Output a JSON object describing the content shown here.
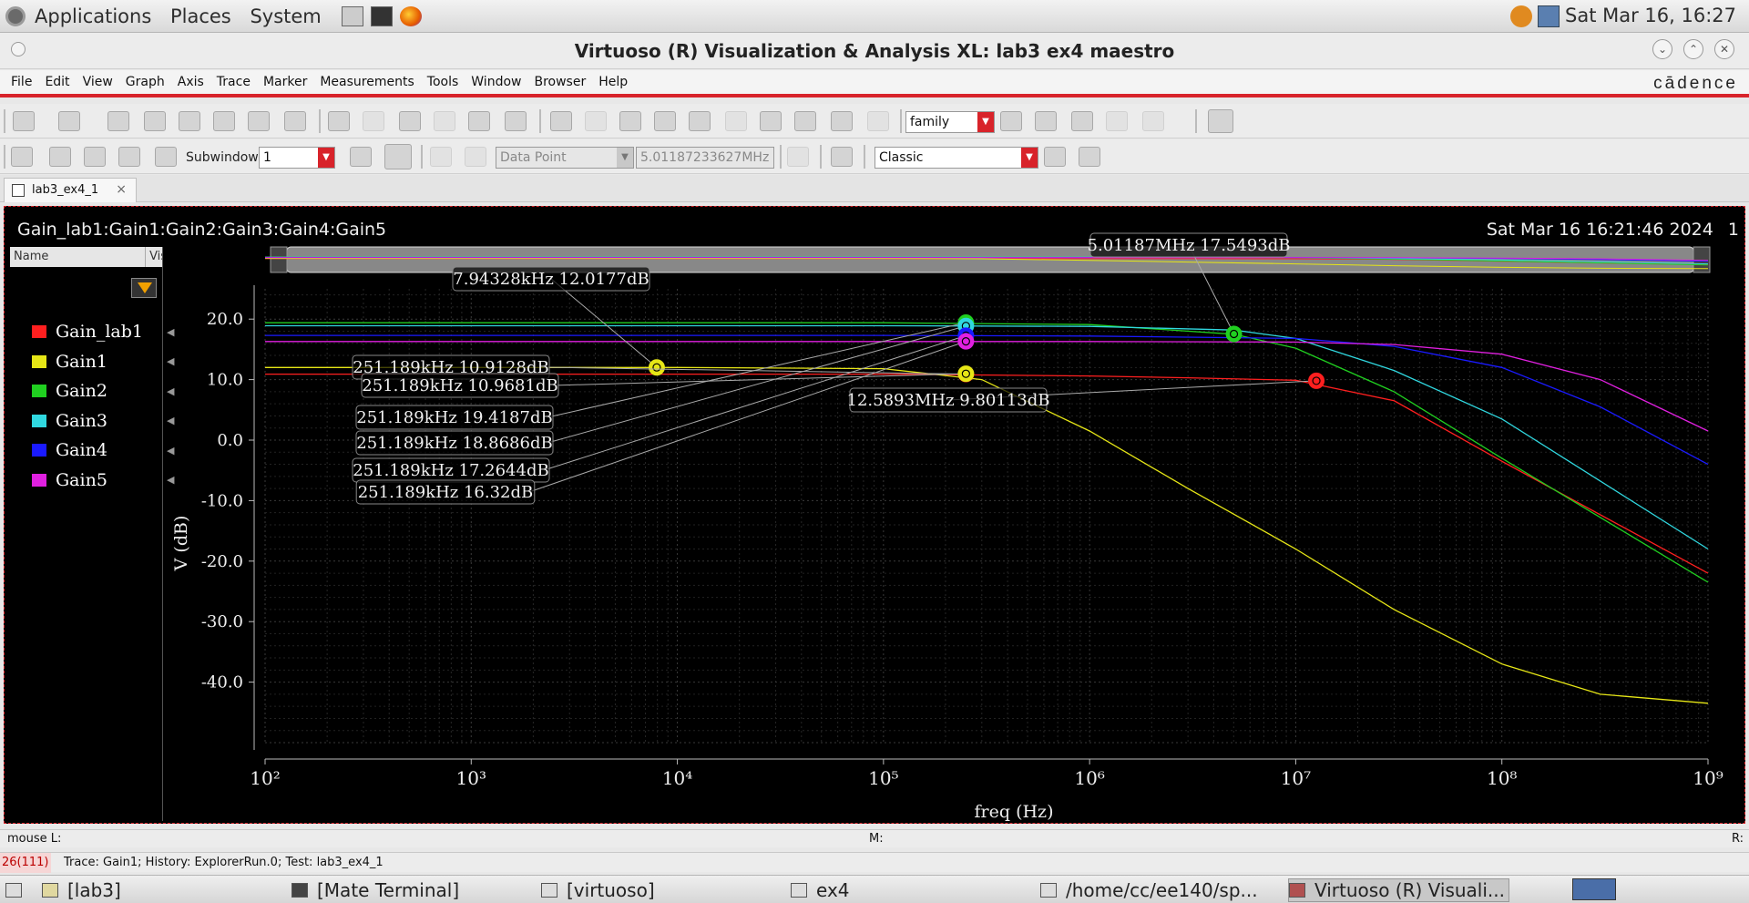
{
  "top_panel": {
    "menus": [
      "Applications",
      "Places",
      "System"
    ],
    "clock": "Sat Mar 16, 16:27"
  },
  "window": {
    "title": "Virtuoso (R) Visualization & Analysis XL: lab3 ex4 maestro",
    "brand": "cādence"
  },
  "menu_bar": [
    "File",
    "Edit",
    "View",
    "Graph",
    "Axis",
    "Trace",
    "Marker",
    "Measurements",
    "Tools",
    "Window",
    "Browser",
    "Help"
  ],
  "toolbar": {
    "family_combo": "family",
    "subwindow_label": "Subwindow:",
    "subwindow_value": "1",
    "data_point_combo": "Data Point",
    "data_point_value": "5.01187233627MHz",
    "style_combo": "Classic"
  },
  "tab": {
    "label": "lab3_ex4_1",
    "close": "×"
  },
  "plot": {
    "header": "Gain_lab1:Gain1:Gain2:Gain3:Gain4:Gain5",
    "timestamp": "Sat Mar 16 16:21:46 2024",
    "subwindow_number": "1",
    "legend_columns": [
      "Name",
      "Vis"
    ]
  },
  "chart_data": {
    "type": "line",
    "xlabel": "freq (Hz)",
    "ylabel": "V (dB)",
    "x_scale": "log",
    "xlim": [
      100,
      1000000000
    ],
    "ylim": [
      -50,
      25
    ],
    "x_tick_labels": [
      "10²",
      "10³",
      "10⁴",
      "10⁵",
      "10⁶",
      "10⁷",
      "10⁸",
      "10⁹"
    ],
    "y_tick_labels": [
      "20.0",
      "10.0",
      "0.0",
      "-10.0",
      "-20.0",
      "-30.0",
      "-40.0"
    ],
    "y_ticks": [
      20,
      10,
      0,
      -10,
      -20,
      -30,
      -40
    ],
    "grid": true,
    "legend_placement": "left panel",
    "series": [
      {
        "name": "Gain_lab1",
        "color": "#ff1f1f",
        "x": [
          100,
          100000,
          1000000,
          3000000,
          10000000,
          30000000,
          100000000,
          1000000000
        ],
        "y": [
          10.9,
          10.9,
          10.6,
          10.3,
          9.9,
          6.5,
          -3.5,
          -22.0
        ]
      },
      {
        "name": "Gain1",
        "color": "#e6e616",
        "x": [
          100,
          10000,
          100000,
          300000,
          1000000,
          3000000,
          10000000,
          30000000,
          100000000,
          300000000,
          1000000000
        ],
        "y": [
          12.0,
          12.0,
          11.8,
          10.0,
          1.5,
          -8.0,
          -18.0,
          -28.0,
          -37.0,
          -42.0,
          -43.5
        ]
      },
      {
        "name": "Gain2",
        "color": "#20d020",
        "x": [
          100,
          100000,
          1000000,
          5000000,
          10000000,
          30000000,
          100000000,
          1000000000
        ],
        "y": [
          19.4,
          19.4,
          19.1,
          17.5,
          15.2,
          8.0,
          -3.0,
          -23.5
        ]
      },
      {
        "name": "Gain3",
        "color": "#30d8e0",
        "x": [
          100,
          100000,
          1000000,
          5000000,
          10000000,
          30000000,
          100000000,
          1000000000
        ],
        "y": [
          18.9,
          18.9,
          18.8,
          18.2,
          16.8,
          11.5,
          3.5,
          -18.0
        ]
      },
      {
        "name": "Gain4",
        "color": "#1a1aff",
        "x": [
          100,
          100000,
          1000000,
          10000000,
          30000000,
          100000000,
          300000000,
          1000000000
        ],
        "y": [
          17.3,
          17.3,
          17.2,
          16.8,
          15.5,
          12.0,
          5.5,
          -4.0
        ]
      },
      {
        "name": "Gain5",
        "color": "#e020e0",
        "x": [
          100,
          100000,
          1000000,
          10000000,
          30000000,
          100000000,
          300000000,
          1000000000
        ],
        "y": [
          16.3,
          16.3,
          16.3,
          16.2,
          15.8,
          14.2,
          10.0,
          1.5
        ]
      }
    ],
    "markers": [
      {
        "label": "7.94328kHz 12.0177dB",
        "series": "Gain1",
        "x": 7943.28,
        "y": 12.0177
      },
      {
        "label": "5.01187MHz 17.5493dB",
        "series": "Gain2",
        "x": 5011870,
        "y": 17.5493
      },
      {
        "label": "12.5893MHz 9.80113dB",
        "series": "Gain_lab1",
        "x": 12589300,
        "y": 9.80113
      },
      {
        "label": "251.189kHz 10.9128dB",
        "series": "Gain_lab1",
        "x": 251189,
        "y": 10.9128
      },
      {
        "label": "251.189kHz 10.9681dB",
        "series": "Gain1",
        "x": 251189,
        "y": 10.9681
      },
      {
        "label": "251.189kHz 19.4187dB",
        "series": "Gain2",
        "x": 251189,
        "y": 19.4187
      },
      {
        "label": "251.189kHz 18.8686dB",
        "series": "Gain3",
        "x": 251189,
        "y": 18.8686
      },
      {
        "label": "251.189kHz 17.2644dB",
        "series": "Gain4",
        "x": 251189,
        "y": 17.2644
      },
      {
        "label": "251.189kHz 16.32dB",
        "series": "Gain5",
        "x": 251189,
        "y": 16.32
      }
    ]
  },
  "mouse_bar": {
    "left": "mouse L:",
    "middle": "M:",
    "right": "R:"
  },
  "status_bar": {
    "count": "26(111)",
    "text": "Trace: Gain1; History: ExplorerRun.0; Test: lab3_ex4_1"
  },
  "taskbar": [
    "[lab3]",
    "[Mate Terminal]",
    "[virtuoso]",
    "ex4",
    "/home/cc/ee140/sp...",
    "Virtuoso (R) Visuali..."
  ]
}
